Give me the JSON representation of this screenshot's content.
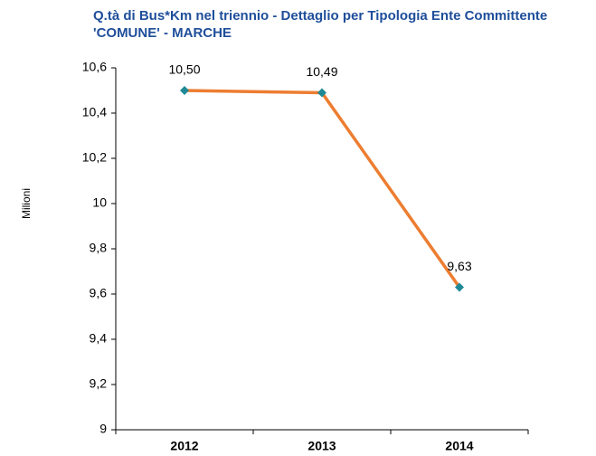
{
  "chart_data": {
    "type": "line",
    "title": "Q.tà di Bus*Km nel triennio - Dettaglio per Tipologia Ente Committente 'COMUNE' - MARCHE",
    "y_label": "Milioni",
    "categories": [
      "2012",
      "2013",
      "2014"
    ],
    "series": [
      {
        "name": "Bus*Km",
        "color": "#ed7d31",
        "marker_color": "#1f8a96",
        "values": [
          10.5,
          10.49,
          9.63
        ],
        "value_labels": [
          "10,50",
          "10,49",
          "9,63"
        ]
      }
    ],
    "ylim": [
      9,
      10.6
    ],
    "yticks": [
      9,
      {
        "value": 9.2,
        "label": "9,2"
      },
      {
        "value": 9.4,
        "label": "9,4"
      },
      {
        "value": 9.6,
        "label": "9,6"
      },
      {
        "value": 9.8,
        "label": "9,8"
      },
      10,
      {
        "value": 10.2,
        "label": "10,2"
      },
      {
        "value": 10.4,
        "label": "10,4"
      },
      {
        "value": 10.6,
        "label": "10,6"
      }
    ],
    "grid": false
  }
}
